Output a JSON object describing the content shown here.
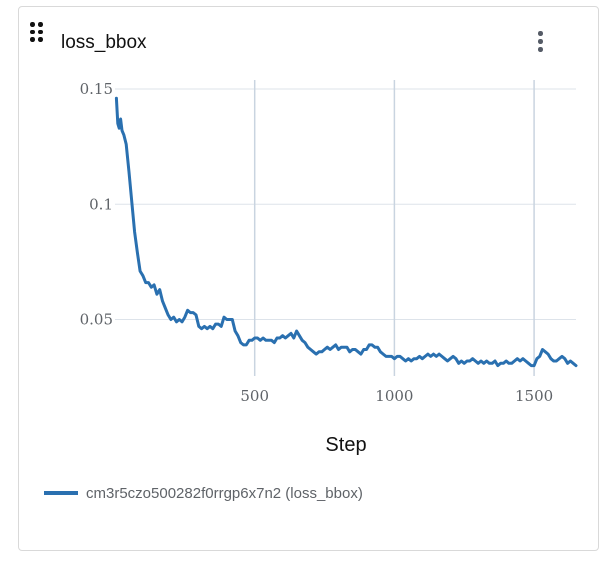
{
  "panel": {
    "title": "loss_bbox",
    "drag_icon": "drag-handle-icon",
    "menu_icon": "more-vertical-icon"
  },
  "chart_data": {
    "type": "line",
    "title": "loss_bbox",
    "xlabel": "Step",
    "ylabel": "",
    "xlim": [
      0,
      1650
    ],
    "ylim": [
      0.0255,
      0.15
    ],
    "x_ticks": [
      500,
      1000,
      1500
    ],
    "x_tick_labels": [
      "500",
      "1000",
      "1500"
    ],
    "y_ticks": [
      0.05,
      0.1,
      0.15
    ],
    "y_tick_labels": [
      "0.05",
      "0.1",
      "0.15"
    ],
    "grid": true,
    "legend_position": "bottom-left",
    "series": [
      {
        "name": "cm3r5czo500282f0rrgp6x7n2 (loss_bbox)",
        "color": "#2a70b0",
        "x": [
          5,
          10,
          15,
          20,
          25,
          32,
          40,
          50,
          60,
          70,
          80,
          90,
          100,
          110,
          120,
          130,
          140,
          150,
          160,
          170,
          180,
          190,
          200,
          210,
          220,
          230,
          240,
          250,
          260,
          270,
          280,
          290,
          300,
          310,
          320,
          330,
          340,
          350,
          360,
          370,
          380,
          390,
          400,
          410,
          420,
          430,
          440,
          450,
          460,
          470,
          480,
          490,
          500,
          510,
          520,
          530,
          540,
          550,
          560,
          570,
          580,
          590,
          600,
          610,
          620,
          630,
          640,
          650,
          660,
          670,
          680,
          690,
          700,
          710,
          720,
          730,
          740,
          750,
          760,
          770,
          780,
          790,
          800,
          810,
          820,
          830,
          840,
          850,
          860,
          870,
          880,
          890,
          900,
          910,
          920,
          930,
          940,
          950,
          960,
          970,
          980,
          990,
          1000,
          1010,
          1020,
          1030,
          1040,
          1050,
          1060,
          1070,
          1080,
          1090,
          1100,
          1110,
          1120,
          1130,
          1140,
          1150,
          1160,
          1170,
          1180,
          1190,
          1200,
          1210,
          1220,
          1230,
          1240,
          1250,
          1260,
          1270,
          1280,
          1290,
          1300,
          1310,
          1320,
          1330,
          1340,
          1350,
          1360,
          1370,
          1380,
          1390,
          1400,
          1410,
          1420,
          1430,
          1440,
          1450,
          1460,
          1470,
          1480,
          1490,
          1500,
          1510,
          1520,
          1530,
          1540,
          1550,
          1560,
          1570,
          1580,
          1590,
          1600,
          1610,
          1620,
          1630,
          1640,
          1650
        ],
        "y": [
          0.146,
          0.135,
          0.133,
          0.137,
          0.132,
          0.13,
          0.126,
          0.114,
          0.101,
          0.088,
          0.079,
          0.071,
          0.069,
          0.066,
          0.066,
          0.064,
          0.065,
          0.061,
          0.063,
          0.058,
          0.055,
          0.052,
          0.05,
          0.051,
          0.049,
          0.05,
          0.049,
          0.051,
          0.054,
          0.053,
          0.053,
          0.052,
          0.047,
          0.046,
          0.047,
          0.046,
          0.047,
          0.046,
          0.048,
          0.048,
          0.047,
          0.051,
          0.05,
          0.05,
          0.05,
          0.045,
          0.043,
          0.04,
          0.039,
          0.039,
          0.041,
          0.041,
          0.042,
          0.042,
          0.041,
          0.042,
          0.041,
          0.041,
          0.041,
          0.04,
          0.042,
          0.042,
          0.043,
          0.042,
          0.043,
          0.044,
          0.042,
          0.045,
          0.043,
          0.041,
          0.04,
          0.038,
          0.037,
          0.036,
          0.035,
          0.036,
          0.036,
          0.037,
          0.038,
          0.037,
          0.038,
          0.039,
          0.037,
          0.038,
          0.038,
          0.038,
          0.036,
          0.037,
          0.037,
          0.036,
          0.035,
          0.037,
          0.037,
          0.039,
          0.039,
          0.038,
          0.038,
          0.036,
          0.035,
          0.034,
          0.034,
          0.034,
          0.033,
          0.034,
          0.034,
          0.033,
          0.032,
          0.033,
          0.032,
          0.033,
          0.033,
          0.034,
          0.033,
          0.034,
          0.035,
          0.034,
          0.035,
          0.034,
          0.035,
          0.034,
          0.033,
          0.032,
          0.033,
          0.034,
          0.033,
          0.031,
          0.032,
          0.031,
          0.032,
          0.032,
          0.033,
          0.032,
          0.031,
          0.032,
          0.031,
          0.032,
          0.031,
          0.031,
          0.032,
          0.03,
          0.031,
          0.031,
          0.032,
          0.031,
          0.031,
          0.032,
          0.033,
          0.032,
          0.033,
          0.032,
          0.031,
          0.03,
          0.03,
          0.033,
          0.034,
          0.037,
          0.036,
          0.035,
          0.033,
          0.032,
          0.032,
          0.033,
          0.034,
          0.033,
          0.031,
          0.032,
          0.031,
          0.03
        ]
      }
    ]
  }
}
